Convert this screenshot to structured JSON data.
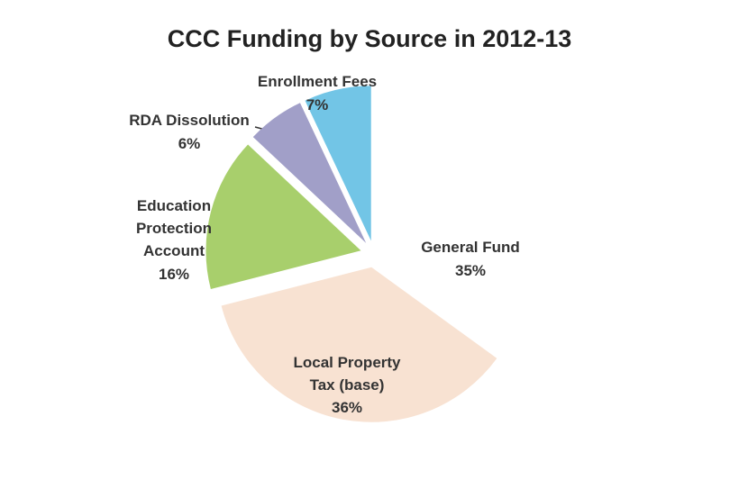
{
  "chart_data": {
    "type": "pie",
    "title": "CCC Funding by Source in 2012-13",
    "categories": [
      "General Fund",
      "Local Property Tax (base)",
      "Education Protection Account",
      "RDA Dissolution",
      "Enrollment Fees"
    ],
    "values": [
      35,
      36,
      16,
      6,
      7
    ],
    "value_labels": [
      "35%",
      "36%",
      "16%",
      "6%",
      "7%"
    ],
    "colors": [
      "#ffffff",
      "#f8e2d2",
      "#a8cf6c",
      "#a19fc8",
      "#72c5e6"
    ]
  }
}
